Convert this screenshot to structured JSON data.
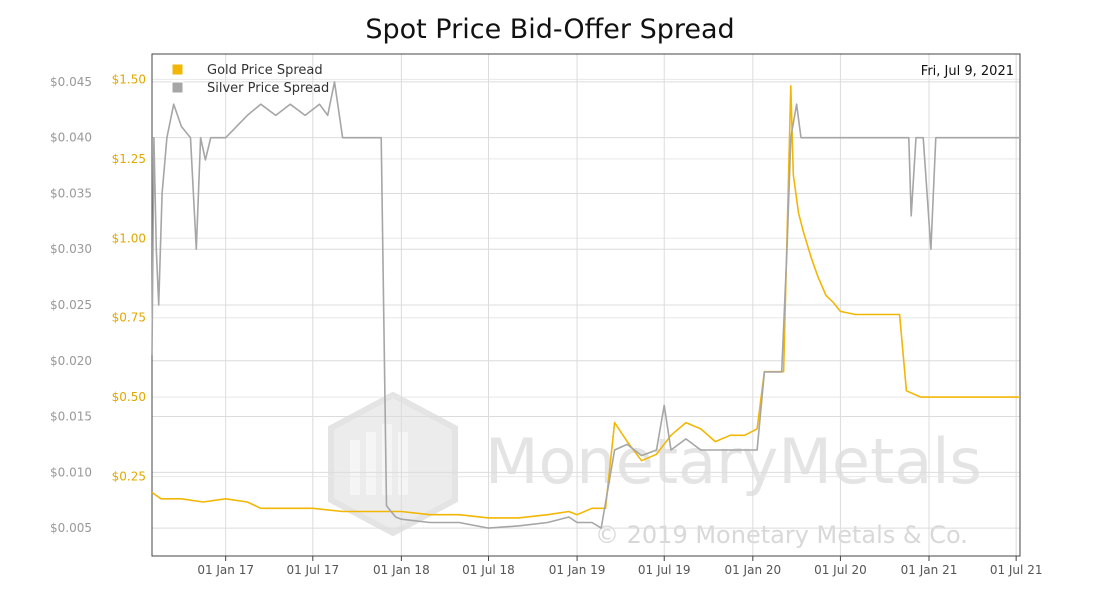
{
  "chart_data": {
    "type": "line",
    "title": "Spot Price Bid-Offer Spread",
    "date_label": "Fri, Jul 9, 2021",
    "x_ticks": [
      "01 Jan 17",
      "01 Jul 17",
      "01 Jan 18",
      "01 Jul 18",
      "01 Jan 19",
      "01 Jul 19",
      "01 Jan 20",
      "01 Jul 20",
      "01 Jan 21",
      "01 Jul 21"
    ],
    "x_range": [
      "2016-08-01",
      "2021-07-09"
    ],
    "y_axes": [
      {
        "name": "silver",
        "ticks": [
          "$0.005",
          "$0.010",
          "$0.015",
          "$0.020",
          "$0.025",
          "$0.030",
          "$0.035",
          "$0.040",
          "$0.045"
        ],
        "range": [
          0.0025,
          0.0475
        ],
        "color": "#999999"
      },
      {
        "name": "gold",
        "ticks": [
          "$0.25",
          "$0.50",
          "$0.75",
          "$1.00",
          "$1.25",
          "$1.50"
        ],
        "range": [
          0.0,
          1.58
        ],
        "color": "#e6ac00"
      }
    ],
    "grid": true,
    "legend_position": "top-left",
    "series": [
      {
        "name": "Gold Price Spread",
        "axis": "gold",
        "color": "#f2b705",
        "points": [
          [
            "2016-08-01",
            0.2
          ],
          [
            "2016-08-20",
            0.18
          ],
          [
            "2016-10-01",
            0.18
          ],
          [
            "2016-11-15",
            0.17
          ],
          [
            "2017-01-01",
            0.18
          ],
          [
            "2017-02-15",
            0.17
          ],
          [
            "2017-03-15",
            0.15
          ],
          [
            "2017-05-01",
            0.15
          ],
          [
            "2017-07-01",
            0.15
          ],
          [
            "2017-09-01",
            0.14
          ],
          [
            "2017-11-01",
            0.14
          ],
          [
            "2017-12-15",
            0.14
          ],
          [
            "2018-01-01",
            0.14
          ],
          [
            "2018-03-01",
            0.13
          ],
          [
            "2018-05-01",
            0.13
          ],
          [
            "2018-07-01",
            0.12
          ],
          [
            "2018-09-01",
            0.12
          ],
          [
            "2018-11-01",
            0.13
          ],
          [
            "2018-12-15",
            0.14
          ],
          [
            "2019-01-01",
            0.13
          ],
          [
            "2019-02-01",
            0.15
          ],
          [
            "2019-03-01",
            0.15
          ],
          [
            "2019-03-20",
            0.42
          ],
          [
            "2019-04-15",
            0.36
          ],
          [
            "2019-05-15",
            0.3
          ],
          [
            "2019-06-15",
            0.32
          ],
          [
            "2019-07-15",
            0.38
          ],
          [
            "2019-08-15",
            0.42
          ],
          [
            "2019-09-15",
            0.4
          ],
          [
            "2019-10-15",
            0.36
          ],
          [
            "2019-11-15",
            0.38
          ],
          [
            "2019-12-15",
            0.38
          ],
          [
            "2020-01-10",
            0.4
          ],
          [
            "2020-01-25",
            0.58
          ],
          [
            "2020-02-15",
            0.58
          ],
          [
            "2020-03-05",
            0.58
          ],
          [
            "2020-03-12",
            1.0
          ],
          [
            "2020-03-20",
            1.48
          ],
          [
            "2020-03-25",
            1.2
          ],
          [
            "2020-04-05",
            1.08
          ],
          [
            "2020-04-15",
            1.02
          ],
          [
            "2020-05-01",
            0.94
          ],
          [
            "2020-05-15",
            0.88
          ],
          [
            "2020-06-01",
            0.82
          ],
          [
            "2020-06-15",
            0.8
          ],
          [
            "2020-07-01",
            0.77
          ],
          [
            "2020-08-01",
            0.76
          ],
          [
            "2020-10-01",
            0.76
          ],
          [
            "2020-11-01",
            0.76
          ],
          [
            "2020-11-15",
            0.52
          ],
          [
            "2020-12-15",
            0.5
          ],
          [
            "2021-01-01",
            0.5
          ],
          [
            "2021-03-01",
            0.5
          ],
          [
            "2021-07-09",
            0.5
          ]
        ]
      },
      {
        "name": "Silver Price Spread",
        "axis": "silver",
        "color": "#a6a6a6",
        "points": [
          [
            "2016-08-01",
            0.0205
          ],
          [
            "2016-08-05",
            0.04
          ],
          [
            "2016-08-10",
            0.03
          ],
          [
            "2016-08-15",
            0.025
          ],
          [
            "2016-08-22",
            0.035
          ],
          [
            "2016-09-01",
            0.04
          ],
          [
            "2016-09-15",
            0.043
          ],
          [
            "2016-10-01",
            0.041
          ],
          [
            "2016-10-20",
            0.04
          ],
          [
            "2016-11-01",
            0.03
          ],
          [
            "2016-11-10",
            0.04
          ],
          [
            "2016-11-20",
            0.038
          ],
          [
            "2016-12-01",
            0.04
          ],
          [
            "2017-01-01",
            0.04
          ],
          [
            "2017-02-15",
            0.042
          ],
          [
            "2017-03-15",
            0.043
          ],
          [
            "2017-04-15",
            0.042
          ],
          [
            "2017-05-15",
            0.043
          ],
          [
            "2017-06-15",
            0.042
          ],
          [
            "2017-07-15",
            0.043
          ],
          [
            "2017-08-01",
            0.042
          ],
          [
            "2017-08-15",
            0.045
          ],
          [
            "2017-09-01",
            0.04
          ],
          [
            "2017-10-01",
            0.04
          ],
          [
            "2017-11-01",
            0.04
          ],
          [
            "2017-11-20",
            0.04
          ],
          [
            "2017-12-01",
            0.007
          ],
          [
            "2017-12-20",
            0.006
          ],
          [
            "2018-01-01",
            0.0058
          ],
          [
            "2018-03-01",
            0.0055
          ],
          [
            "2018-05-01",
            0.0055
          ],
          [
            "2018-07-01",
            0.005
          ],
          [
            "2018-09-01",
            0.0052
          ],
          [
            "2018-11-01",
            0.0055
          ],
          [
            "2018-12-15",
            0.006
          ],
          [
            "2019-01-01",
            0.0055
          ],
          [
            "2019-02-01",
            0.0055
          ],
          [
            "2019-02-20",
            0.005
          ],
          [
            "2019-03-20",
            0.012
          ],
          [
            "2019-04-15",
            0.0125
          ],
          [
            "2019-05-15",
            0.0115
          ],
          [
            "2019-06-15",
            0.012
          ],
          [
            "2019-07-01",
            0.016
          ],
          [
            "2019-07-15",
            0.012
          ],
          [
            "2019-08-15",
            0.013
          ],
          [
            "2019-09-15",
            0.012
          ],
          [
            "2019-10-15",
            0.012
          ],
          [
            "2019-11-15",
            0.012
          ],
          [
            "2019-12-15",
            0.012
          ],
          [
            "2020-01-10",
            0.012
          ],
          [
            "2020-01-25",
            0.019
          ],
          [
            "2020-02-15",
            0.019
          ],
          [
            "2020-03-01",
            0.019
          ],
          [
            "2020-03-12",
            0.03
          ],
          [
            "2020-03-20",
            0.04
          ],
          [
            "2020-04-01",
            0.043
          ],
          [
            "2020-04-10",
            0.04
          ],
          [
            "2020-06-01",
            0.04
          ],
          [
            "2020-09-01",
            0.04
          ],
          [
            "2020-11-20",
            0.04
          ],
          [
            "2020-11-25",
            0.033
          ],
          [
            "2020-12-05",
            0.04
          ],
          [
            "2020-12-20",
            0.04
          ],
          [
            "2021-01-05",
            0.03
          ],
          [
            "2021-01-15",
            0.04
          ],
          [
            "2021-04-01",
            0.04
          ],
          [
            "2021-07-09",
            0.04
          ]
        ]
      }
    ]
  },
  "watermark": {
    "brand": "MonetaryMetals",
    "copyright": "© 2019 Monetary Metals & Co."
  }
}
